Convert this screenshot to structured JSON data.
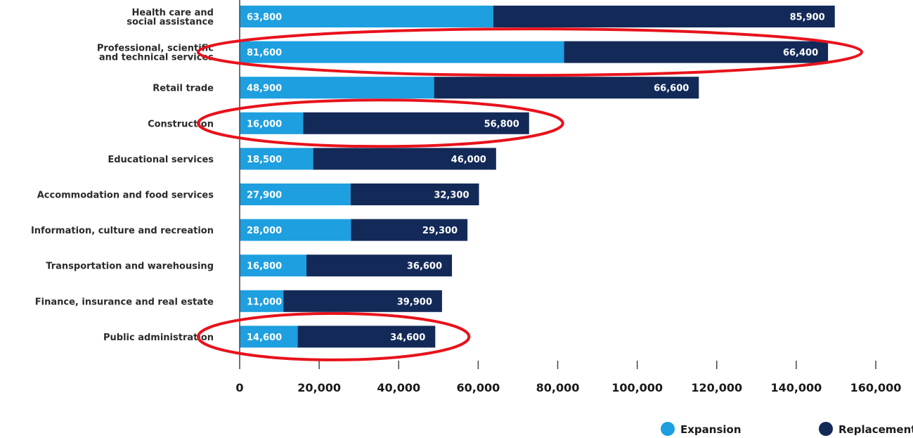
{
  "chart_data": {
    "type": "bar",
    "orientation": "horizontal",
    "stacked": true,
    "categories": [
      "Health care and\nsocial assistance",
      "Professional, scientific\nand technical services",
      "Retail trade",
      "Construction",
      "Educational services",
      "Accommodation and food services",
      "Information, culture and recreation",
      "Transportation and warehousing",
      "Finance, insurance and real estate",
      "Public administration"
    ],
    "series": [
      {
        "name": "Expansion",
        "color": "#1d9fe0",
        "values": [
          63800,
          81600,
          48900,
          16000,
          18500,
          27900,
          28000,
          16800,
          11000,
          14600
        ],
        "labels": [
          "63,800",
          "81,600",
          "48,900",
          "16,000",
          "18,500",
          "27,900",
          "28,000",
          "16,800",
          "11,000",
          "14,600"
        ]
      },
      {
        "name": "Replacement",
        "color": "#132a58",
        "values": [
          85900,
          66400,
          66600,
          56800,
          46000,
          32300,
          29300,
          36600,
          39900,
          34600
        ],
        "labels": [
          "85,900",
          "66,400",
          "66,600",
          "56,800",
          "46,000",
          "32,300",
          "29,300",
          "36,600",
          "39,900",
          "34,600"
        ]
      }
    ],
    "xlim": [
      0,
      160000
    ],
    "x_ticks": [
      0,
      20000,
      40000,
      60000,
      80000,
      100000,
      120000,
      140000,
      160000
    ],
    "x_tick_labels": [
      "0",
      "20,000",
      "40,000",
      "60,000",
      "80,000",
      "100,000",
      "120,000",
      "140,000",
      "160,000"
    ],
    "grid": false,
    "legend_position": "bottom-right",
    "highlights": {
      "color": "#e8121b",
      "categories": [
        "Professional, scientific\nand technical services",
        "Construction",
        "Public administration"
      ]
    }
  }
}
